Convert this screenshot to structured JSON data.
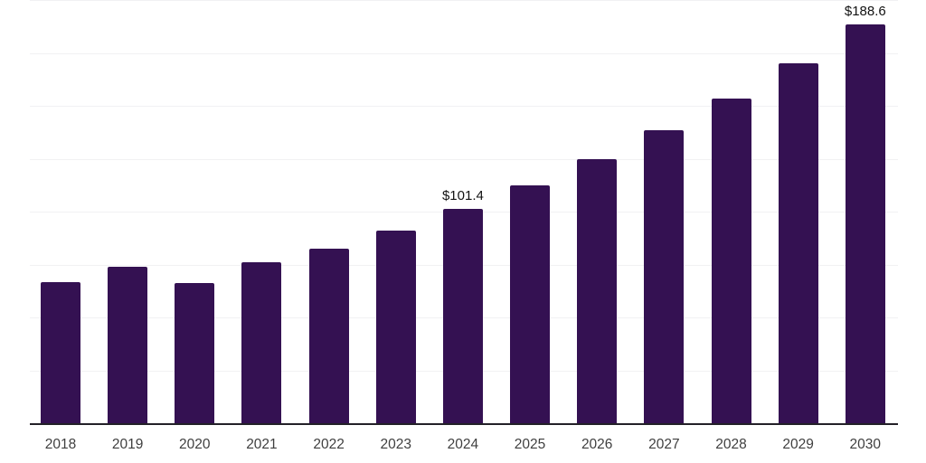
{
  "chart_data": {
    "type": "bar",
    "categories": [
      "2018",
      "2019",
      "2020",
      "2021",
      "2022",
      "2023",
      "2024",
      "2025",
      "2026",
      "2027",
      "2028",
      "2029",
      "2030"
    ],
    "values": [
      66.8,
      74.0,
      66.1,
      75.9,
      82.5,
      91.2,
      101.4,
      112.4,
      124.7,
      138.3,
      153.4,
      170.1,
      188.6
    ],
    "annotations": [
      {
        "category": "2024",
        "text": "$101.4"
      },
      {
        "category": "2030",
        "text": "$188.6"
      }
    ],
    "title": "",
    "xlabel": "",
    "ylabel": "",
    "ylim": [
      0,
      200
    ],
    "grid_interval": 25,
    "grid_visible": true,
    "legend": "none"
  },
  "colors": {
    "background": "#ffffff",
    "bar": "#341152",
    "axis": "#232128",
    "gridline": "#f1f1f3",
    "tick_label": "#3f3f3f",
    "data_label": "#121212"
  }
}
